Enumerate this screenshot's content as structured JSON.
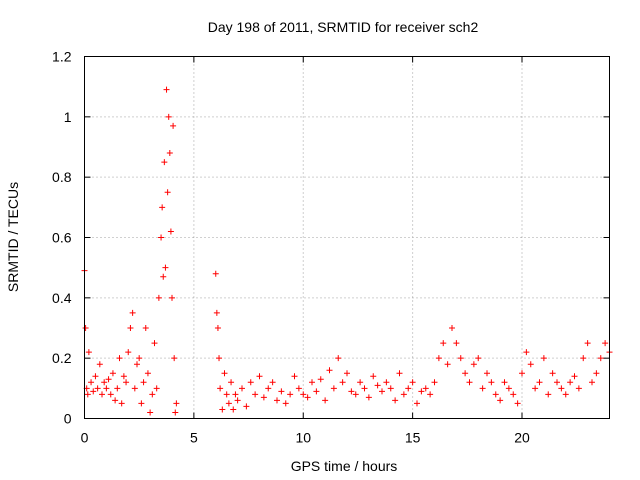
{
  "colors": {
    "series": "#ff0000",
    "grid": "#a0a0a0",
    "axis": "#000000"
  },
  "chart_data": {
    "type": "scatter",
    "title": "Day 198 of 2011, SRMTID for receiver sch2",
    "xlabel": "GPS time / hours",
    "ylabel": "SRMTID / TECUs",
    "xlim": [
      0,
      24
    ],
    "ylim": [
      0,
      1.2
    ],
    "xticks": [
      0,
      5,
      10,
      15,
      20
    ],
    "xtick_labels": [
      "0",
      "5",
      "10",
      "15",
      "20"
    ],
    "yticks": [
      0,
      0.2,
      0.4,
      0.6,
      0.8,
      1,
      1.2
    ],
    "ytick_labels": [
      "0",
      "0.2",
      "0.4",
      "0.6",
      "0.8",
      "1",
      "1.2"
    ],
    "grid": true,
    "marker": "plus",
    "series": [
      {
        "name": "sch2",
        "x": [
          0.0,
          0.05,
          0.1,
          0.15,
          0.2,
          0.3,
          0.4,
          0.5,
          0.6,
          0.7,
          0.8,
          0.9,
          1.0,
          1.1,
          1.2,
          1.3,
          1.4,
          1.5,
          1.6,
          1.7,
          1.8,
          1.9,
          2.0,
          2.1,
          2.2,
          2.3,
          2.4,
          2.5,
          2.6,
          2.7,
          2.8,
          2.9,
          3.0,
          3.1,
          3.2,
          3.3,
          3.4,
          3.5,
          3.55,
          3.6,
          3.65,
          3.7,
          3.75,
          3.8,
          3.85,
          3.9,
          3.95,
          4.0,
          4.05,
          4.1,
          4.15,
          4.2,
          6.0,
          6.05,
          6.1,
          6.15,
          6.2,
          6.3,
          6.4,
          6.5,
          6.6,
          6.7,
          6.8,
          6.9,
          7.0,
          7.2,
          7.4,
          7.6,
          7.8,
          8.0,
          8.2,
          8.4,
          8.6,
          8.8,
          9.0,
          9.2,
          9.4,
          9.6,
          9.8,
          10.0,
          10.2,
          10.4,
          10.6,
          10.8,
          11.0,
          11.2,
          11.4,
          11.6,
          11.8,
          12.0,
          12.2,
          12.4,
          12.6,
          12.8,
          13.0,
          13.2,
          13.4,
          13.6,
          13.8,
          14.0,
          14.2,
          14.4,
          14.6,
          14.8,
          15.0,
          15.2,
          15.4,
          15.6,
          15.8,
          16.0,
          16.2,
          16.4,
          16.6,
          16.8,
          17.0,
          17.2,
          17.4,
          17.6,
          17.8,
          18.0,
          18.2,
          18.4,
          18.6,
          18.8,
          19.0,
          19.2,
          19.4,
          19.6,
          19.8,
          20.0,
          20.2,
          20.4,
          20.6,
          20.8,
          21.0,
          21.2,
          21.4,
          21.6,
          21.8,
          22.0,
          22.2,
          22.4,
          22.6,
          22.8,
          23.0,
          23.2,
          23.4,
          23.6,
          23.8,
          24.0
        ],
        "y": [
          0.49,
          0.3,
          0.1,
          0.08,
          0.22,
          0.12,
          0.09,
          0.14,
          0.1,
          0.18,
          0.08,
          0.12,
          0.1,
          0.13,
          0.08,
          0.15,
          0.06,
          0.1,
          0.2,
          0.05,
          0.14,
          0.12,
          0.22,
          0.3,
          0.35,
          0.1,
          0.18,
          0.2,
          0.05,
          0.12,
          0.3,
          0.15,
          0.02,
          0.08,
          0.25,
          0.1,
          0.4,
          0.6,
          0.7,
          0.47,
          0.85,
          0.5,
          1.09,
          0.75,
          1.0,
          0.88,
          0.62,
          0.4,
          0.97,
          0.2,
          0.02,
          0.05,
          0.48,
          0.35,
          0.3,
          0.2,
          0.1,
          0.03,
          0.15,
          0.08,
          0.05,
          0.12,
          0.03,
          0.08,
          0.06,
          0.1,
          0.04,
          0.12,
          0.08,
          0.14,
          0.07,
          0.1,
          0.12,
          0.06,
          0.09,
          0.05,
          0.08,
          0.14,
          0.1,
          0.08,
          0.07,
          0.12,
          0.09,
          0.13,
          0.06,
          0.16,
          0.1,
          0.2,
          0.12,
          0.15,
          0.09,
          0.08,
          0.12,
          0.1,
          0.07,
          0.14,
          0.11,
          0.09,
          0.12,
          0.1,
          0.06,
          0.15,
          0.08,
          0.1,
          0.12,
          0.05,
          0.09,
          0.1,
          0.08,
          0.12,
          0.2,
          0.25,
          0.18,
          0.3,
          0.25,
          0.2,
          0.15,
          0.12,
          0.18,
          0.2,
          0.1,
          0.15,
          0.12,
          0.08,
          0.06,
          0.12,
          0.1,
          0.08,
          0.05,
          0.15,
          0.22,
          0.18,
          0.1,
          0.12,
          0.2,
          0.08,
          0.15,
          0.12,
          0.1,
          0.08,
          0.12,
          0.14,
          0.1,
          0.2,
          0.25,
          0.12,
          0.15,
          0.2,
          0.25,
          0.22
        ]
      }
    ]
  }
}
